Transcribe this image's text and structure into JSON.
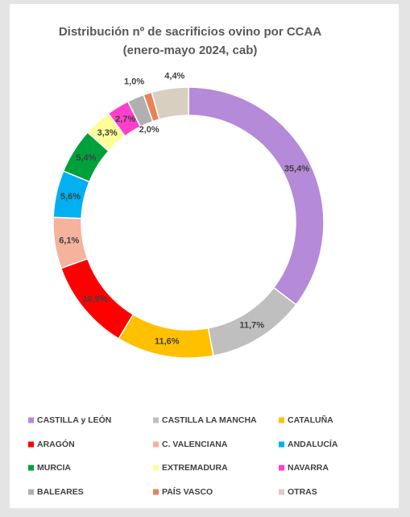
{
  "chart_data": {
    "type": "donut",
    "title": [
      "Distribución  nº de sacrificios ovino por CCAA",
      "(enero-mayo 2024, cab)"
    ],
    "categories": [
      "CASTILLA y LEÓN",
      "CASTILLA LA MANCHA",
      "CATALUÑA",
      "ARAGÓN",
      "C. VALENCIANA",
      "ANDALUCÍA",
      "MURCIA",
      "EXTREMADURA",
      "NAVARRA",
      "BALEARES",
      "PAÍS VASCO",
      "OTRAS"
    ],
    "values": [
      35.4,
      11.7,
      11.6,
      10.9,
      6.1,
      5.6,
      5.4,
      3.3,
      2.7,
      2.0,
      1.0,
      4.4
    ],
    "value_labels": [
      "35,4%",
      "11,7%",
      "11,6%",
      "10,9%",
      "6,1%",
      "5,6%",
      "5,4%",
      "3,3%",
      "2,7%",
      "2,0%",
      "1,0%",
      "4,4%"
    ],
    "colors": [
      "#b48ad9",
      "#bfbfbf",
      "#ffc000",
      "#ff0000",
      "#f5b29c",
      "#00b0f0",
      "#00a03c",
      "#ffff99",
      "#ff3fcc",
      "#b0b0b0",
      "#e8825a",
      "#d9cfc0"
    ],
    "legend": "bottom"
  }
}
